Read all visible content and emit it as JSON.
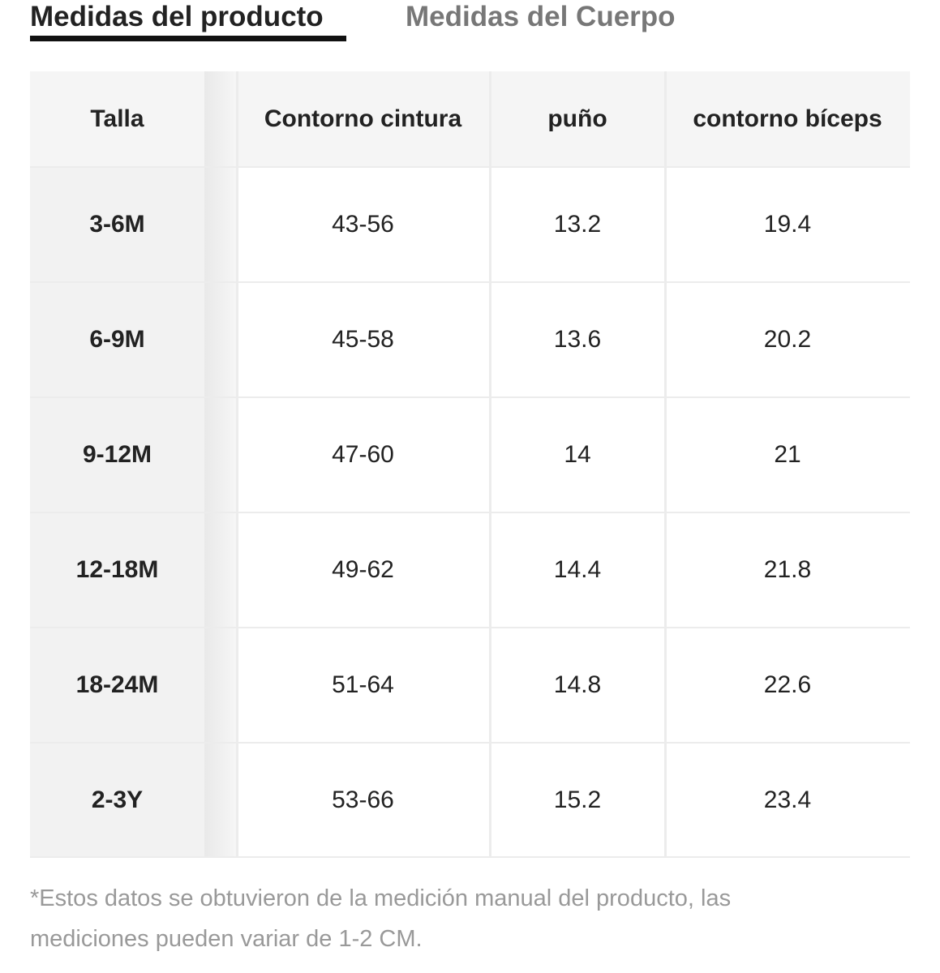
{
  "tabs": [
    "Medidas del producto",
    "Medidas del Cuerpo"
  ],
  "table": {
    "header": [
      "Talla",
      "Contorno cintura",
      "puño",
      "contorno bíceps"
    ],
    "rows": [
      [
        "3-6M",
        "43-56",
        "13.2",
        "19.4"
      ],
      [
        "6-9M",
        "45-58",
        "13.6",
        "20.2"
      ],
      [
        "9-12M",
        "47-60",
        "14",
        "21"
      ],
      [
        "12-18M",
        "49-62",
        "14.4",
        "21.8"
      ],
      [
        "18-24M",
        "51-64",
        "14.8",
        "22.6"
      ],
      [
        "2-3Y",
        "53-66",
        "15.2",
        "23.4"
      ]
    ]
  },
  "note": "*Estos datos se obtuvieron de la medición manual del producto, las mediciones pueden variar de 1-2 CM."
}
